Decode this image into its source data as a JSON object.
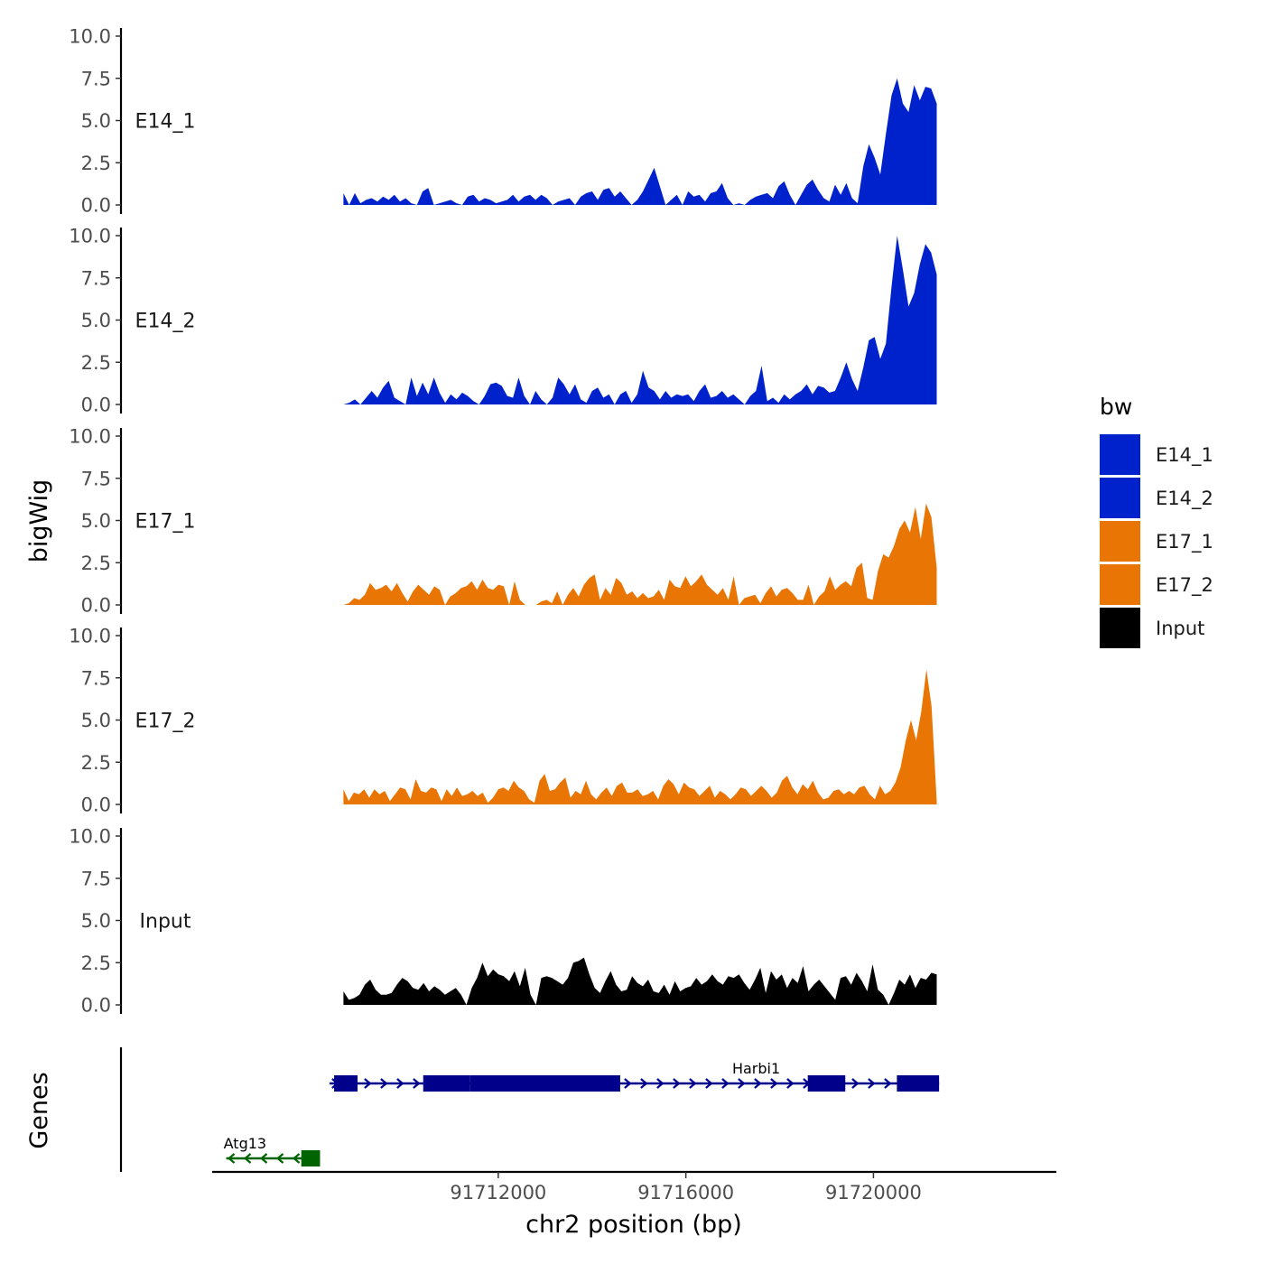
{
  "chart_data": {
    "type": "area",
    "ylabel": "bigWig",
    "xlabel": "chr2 position (bp)",
    "ylim": [
      0,
      10
    ],
    "y_ticks": [
      "10.0",
      "7.5",
      "5.0",
      "2.5",
      "0.0"
    ],
    "y_tick_values": [
      10,
      7.5,
      5,
      2.5,
      0
    ],
    "x_range": [
      91705900,
      91723900
    ],
    "x_ticks": [
      {
        "value": 91712000,
        "label": "91712000"
      },
      {
        "value": 91716000,
        "label": "91716000"
      },
      {
        "value": 91720000,
        "label": "91720000"
      }
    ],
    "track_range": [
      91708700,
      91721350
    ],
    "gene_panel_label": "Genes",
    "legend": {
      "title": "bw",
      "entries": [
        {
          "label": "E14_1",
          "color": "#0022CC"
        },
        {
          "label": "E14_2",
          "color": "#0022CC"
        },
        {
          "label": "E17_1",
          "color": "#E87504"
        },
        {
          "label": "E17_2",
          "color": "#E87504"
        },
        {
          "label": "Input",
          "color": "#000000"
        }
      ]
    },
    "series": [
      {
        "name": "E14_1",
        "color": "#0022CC",
        "values": [
          0.7,
          0.0,
          0.7,
          0.1,
          0.3,
          0.4,
          0.2,
          0.5,
          0.3,
          0.6,
          0.2,
          0.4,
          0.1,
          0.0,
          0.8,
          1.0,
          0.0,
          0.1,
          0.2,
          0.3,
          0.1,
          0.0,
          0.5,
          0.6,
          0.2,
          0.4,
          0.3,
          0.1,
          0.2,
          0.3,
          0.6,
          0.2,
          0.5,
          0.6,
          0.3,
          0.6,
          0.4,
          0.0,
          0.2,
          0.3,
          0.4,
          0.0,
          0.5,
          0.7,
          0.8,
          0.3,
          0.9,
          1.0,
          0.5,
          0.8,
          0.4,
          0.0,
          0.3,
          0.8,
          1.5,
          2.2,
          1.1,
          0.0,
          0.3,
          0.6,
          0.0,
          0.8,
          0.5,
          0.6,
          0.2,
          0.7,
          0.8,
          1.3,
          0.4,
          0.0,
          0.1,
          0.0,
          0.3,
          0.5,
          0.6,
          0.7,
          0.4,
          1.1,
          1.4,
          0.6,
          0.0,
          0.6,
          1.2,
          1.5,
          0.9,
          0.4,
          0.2,
          1.2,
          0.6,
          1.3,
          0.4,
          0.1,
          2.3,
          3.6,
          2.8,
          1.8,
          4.2,
          6.5,
          7.5,
          6.0,
          5.5,
          7.1,
          6.2,
          7.0,
          6.9,
          6.0
        ]
      },
      {
        "name": "E14_2",
        "color": "#0022CC",
        "values": [
          0.0,
          0.1,
          0.3,
          0.0,
          0.4,
          0.8,
          0.4,
          1.0,
          1.4,
          0.4,
          0.2,
          0.0,
          1.6,
          0.5,
          1.3,
          0.6,
          1.6,
          0.7,
          0.1,
          0.6,
          0.3,
          0.7,
          0.5,
          0.2,
          0.0,
          0.5,
          1.2,
          1.3,
          1.1,
          0.5,
          0.4,
          1.6,
          0.5,
          0.0,
          0.8,
          0.3,
          0.0,
          0.4,
          1.6,
          1.2,
          0.6,
          1.2,
          0.3,
          0.1,
          0.8,
          1.0,
          0.4,
          0.6,
          0.0,
          0.6,
          0.8,
          0.1,
          0.6,
          2.0,
          1.0,
          0.8,
          0.3,
          0.8,
          0.4,
          0.6,
          0.5,
          0.6,
          0.2,
          0.8,
          1.2,
          0.4,
          0.5,
          0.8,
          0.4,
          0.6,
          0.3,
          0.0,
          0.5,
          0.8,
          2.3,
          0.2,
          0.4,
          0.1,
          0.6,
          0.3,
          0.6,
          0.8,
          1.2,
          0.6,
          1.1,
          1.0,
          0.7,
          0.8,
          1.6,
          2.5,
          1.5,
          0.8,
          2.2,
          3.8,
          4.0,
          2.7,
          3.6,
          7.0,
          10.0,
          8.0,
          5.8,
          6.6,
          8.3,
          9.5,
          9.0,
          7.7
        ]
      },
      {
        "name": "E17_1",
        "color": "#E87504",
        "values": [
          0.0,
          0.1,
          0.4,
          0.3,
          0.6,
          1.3,
          0.9,
          1.0,
          1.2,
          0.8,
          1.3,
          0.7,
          0.2,
          0.8,
          1.2,
          0.9,
          0.6,
          1.1,
          0.9,
          0.0,
          0.5,
          0.7,
          1.0,
          1.1,
          1.4,
          0.9,
          1.5,
          1.0,
          0.9,
          1.2,
          1.1,
          0.0,
          1.4,
          0.3,
          0.0,
          0.0,
          0.0,
          0.2,
          0.3,
          0.1,
          0.8,
          0.0,
          0.6,
          1.0,
          0.5,
          1.2,
          1.6,
          1.8,
          0.3,
          1.0,
          0.6,
          1.6,
          1.3,
          0.6,
          0.8,
          0.4,
          0.7,
          0.4,
          0.5,
          0.9,
          0.3,
          1.5,
          1.1,
          1.0,
          1.7,
          1.1,
          1.4,
          1.8,
          1.2,
          0.9,
          0.6,
          1.0,
          0.3,
          1.7,
          0.0,
          0.4,
          0.5,
          0.6,
          0.1,
          0.7,
          1.1,
          0.5,
          0.9,
          1.0,
          0.7,
          0.3,
          0.3,
          1.2,
          0.0,
          0.5,
          0.8,
          1.7,
          0.9,
          1.2,
          1.4,
          1.1,
          2.2,
          2.5,
          0.4,
          0.3,
          2.0,
          3.0,
          2.8,
          3.5,
          4.5,
          5.0,
          4.3,
          5.8,
          3.9,
          6.0,
          5.2,
          2.2
        ]
      },
      {
        "name": "E17_2",
        "color": "#E87504",
        "values": [
          0.9,
          0.2,
          0.7,
          0.6,
          0.9,
          0.4,
          0.9,
          0.6,
          0.8,
          0.2,
          0.6,
          1.0,
          0.9,
          0.3,
          1.5,
          0.8,
          0.7,
          1.0,
          0.9,
          0.2,
          0.9,
          0.5,
          1.0,
          0.5,
          0.6,
          0.8,
          0.5,
          0.7,
          0.1,
          0.4,
          0.9,
          1.0,
          0.8,
          1.4,
          1.0,
          0.8,
          0.3,
          0.1,
          1.4,
          1.8,
          0.8,
          0.9,
          1.3,
          1.6,
          0.4,
          0.8,
          0.6,
          1.4,
          0.6,
          0.3,
          0.7,
          1.0,
          0.5,
          1.1,
          1.3,
          0.7,
          0.7,
          0.9,
          0.5,
          0.6,
          0.8,
          0.3,
          1.1,
          1.5,
          1.2,
          0.6,
          1.3,
          1.0,
          0.9,
          0.5,
          0.8,
          1.1,
          0.4,
          0.8,
          0.6,
          0.3,
          0.6,
          1.0,
          0.9,
          0.5,
          0.8,
          1.1,
          0.8,
          0.4,
          0.7,
          1.4,
          1.7,
          1.0,
          0.6,
          1.2,
          0.9,
          1.4,
          0.7,
          0.3,
          0.4,
          0.8,
          0.9,
          0.6,
          0.8,
          0.6,
          1.0,
          1.1,
          0.6,
          0.3,
          1.1,
          0.6,
          0.8,
          1.3,
          2.2,
          3.8,
          5.0,
          3.8,
          5.5,
          8.0,
          5.8,
          0.2
        ]
      },
      {
        "name": "Input",
        "color": "#000000",
        "values": [
          0.8,
          0.3,
          0.4,
          0.6,
          1.2,
          1.5,
          0.9,
          0.6,
          0.6,
          0.7,
          1.2,
          1.6,
          1.4,
          1.0,
          0.9,
          1.3,
          0.8,
          1.1,
          0.9,
          0.6,
          0.8,
          1.0,
          0.6,
          0.0,
          1.0,
          1.6,
          2.5,
          1.7,
          2.1,
          1.8,
          1.7,
          1.4,
          2.0,
          1.1,
          2.2,
          0.6,
          0.0,
          1.6,
          1.7,
          1.6,
          1.4,
          1.2,
          1.6,
          2.5,
          2.6,
          2.8,
          1.8,
          1.0,
          0.7,
          1.4,
          2.0,
          1.2,
          0.8,
          0.9,
          1.7,
          1.3,
          1.1,
          1.5,
          0.8,
          0.7,
          1.2,
          0.6,
          1.4,
          0.8,
          1.0,
          1.1,
          1.6,
          1.2,
          1.4,
          1.8,
          1.4,
          1.2,
          1.7,
          1.6,
          1.8,
          1.3,
          0.9,
          1.5,
          2.2,
          0.7,
          2.0,
          1.5,
          1.8,
          1.0,
          1.6,
          1.3,
          2.3,
          0.8,
          1.2,
          1.5,
          1.1,
          0.7,
          0.3,
          1.6,
          1.7,
          1.2,
          1.9,
          1.4,
          0.8,
          2.4,
          0.9,
          0.6,
          0.0,
          0.7,
          1.5,
          1.2,
          1.8,
          1.0,
          1.6,
          1.5,
          1.9,
          1.8
        ]
      }
    ],
    "genes": [
      {
        "name": "Harbi1",
        "strand": "+",
        "color": "#00008B",
        "start": 91708400,
        "end": 91721400,
        "exons": [
          [
            91708500,
            91709000
          ],
          [
            91710400,
            91711400
          ],
          [
            91711400,
            91714600
          ],
          [
            91718600,
            91719400
          ],
          [
            91720500,
            91721400
          ]
        ]
      },
      {
        "name": "Atg13",
        "strand": "-",
        "color": "#006400",
        "start": 91706200,
        "end": 91708200,
        "exons": [
          [
            91707800,
            91708200
          ]
        ]
      }
    ]
  }
}
